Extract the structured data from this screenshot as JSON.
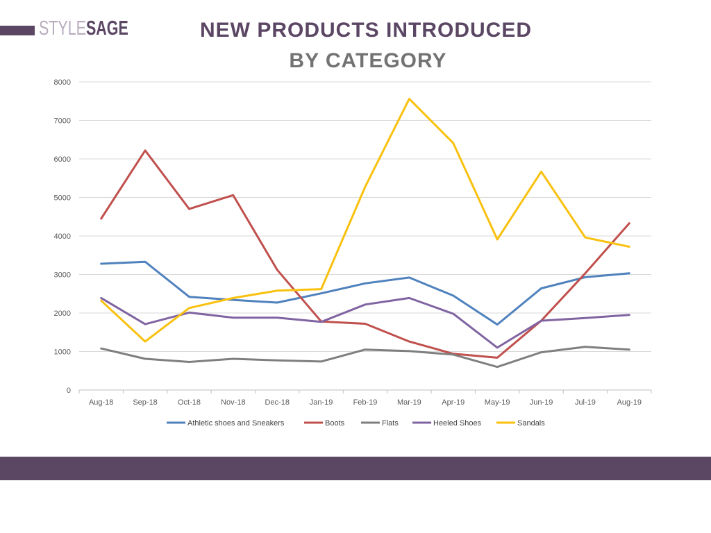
{
  "header": {
    "logo_left": "STYLE",
    "logo_right": "SAGE",
    "title_line1": "NEW PRODUCTS INTRODUCED",
    "title_line2": "BY CATEGORY"
  },
  "colors": {
    "brand_purple": "#5b4664",
    "logo_light": "#b8acbd",
    "title_gray": "#737373",
    "grid": "#d9d9d9"
  },
  "chart_data": {
    "type": "line",
    "title": "",
    "xlabel": "",
    "ylabel": "",
    "categories": [
      "Aug-18",
      "Sep-18",
      "Oct-18",
      "Nov-18",
      "Dec-18",
      "Jan-19",
      "Feb-19",
      "Mar-19",
      "Apr-19",
      "May-19",
      "Jun-19",
      "Jul-19",
      "Aug-19"
    ],
    "ylim": [
      0,
      8000
    ],
    "yticks": [
      0,
      1000,
      2000,
      3000,
      4000,
      5000,
      6000,
      7000,
      8000
    ],
    "grid": true,
    "legend_position": "bottom",
    "series": [
      {
        "name": "Athletic shoes and Sneakers",
        "color": "#4f81bd",
        "values": [
          3280,
          3330,
          2420,
          2340,
          2270,
          2510,
          2770,
          2920,
          2450,
          1700,
          2640,
          2930,
          3030
        ]
      },
      {
        "name": "Boots",
        "color": "#c0504d",
        "values": [
          4450,
          6220,
          4700,
          5060,
          3120,
          1780,
          1720,
          1260,
          940,
          840,
          1800,
          3030,
          4330
        ]
      },
      {
        "name": "Flats",
        "color": "#7f7f7f",
        "values": [
          1080,
          810,
          730,
          810,
          770,
          740,
          1050,
          1010,
          920,
          600,
          980,
          1120,
          1050
        ]
      },
      {
        "name": "Heeled Shoes",
        "color": "#8064a2",
        "values": [
          2390,
          1710,
          2010,
          1880,
          1880,
          1770,
          2220,
          2390,
          1980,
          1100,
          1800,
          1870,
          1950
        ]
      },
      {
        "name": "Sandals",
        "color": "#f9c10e",
        "values": [
          2320,
          1260,
          2130,
          2390,
          2580,
          2620,
          5280,
          7560,
          6410,
          3910,
          5670,
          3960,
          3720
        ]
      }
    ]
  }
}
